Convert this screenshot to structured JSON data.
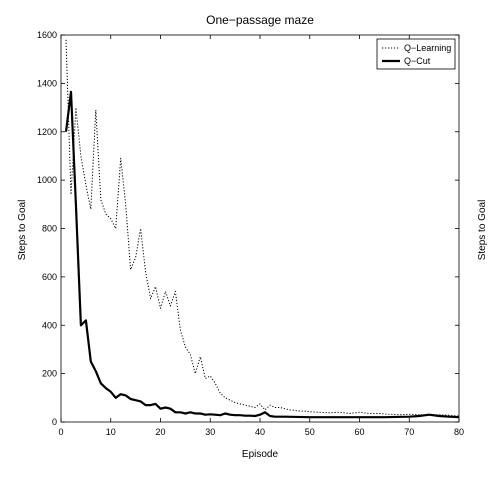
{
  "chart_data": {
    "type": "line",
    "title": "One−passage maze",
    "xlabel": "Episode",
    "ylabel": "Steps to Goal",
    "ylabel_right": "Steps to Goal",
    "xlim": [
      0,
      80
    ],
    "ylim": [
      0,
      1600
    ],
    "xticks": [
      0,
      10,
      20,
      30,
      40,
      50,
      60,
      70,
      80
    ],
    "yticks": [
      0,
      200,
      400,
      600,
      800,
      1000,
      1200,
      1400,
      1600
    ],
    "grid": false,
    "legend_position": "top-right",
    "series": [
      {
        "name": "Q−Learning",
        "style": "dotted",
        "color": "#000000",
        "x": [
          1,
          2,
          3,
          4,
          5,
          6,
          7,
          8,
          9,
          10,
          11,
          12,
          13,
          14,
          15,
          16,
          17,
          18,
          19,
          20,
          21,
          22,
          23,
          24,
          25,
          26,
          27,
          28,
          29,
          30,
          31,
          32,
          33,
          34,
          35,
          36,
          37,
          38,
          39,
          40,
          41,
          42,
          43,
          44,
          45,
          46,
          47,
          48,
          49,
          50,
          52,
          54,
          56,
          58,
          60,
          62,
          64,
          66,
          68,
          70,
          72,
          74,
          76,
          78,
          80
        ],
        "y": [
          1580,
          940,
          1300,
          1100,
          980,
          880,
          1290,
          920,
          860,
          840,
          800,
          1090,
          900,
          630,
          680,
          800,
          620,
          510,
          560,
          470,
          540,
          480,
          540,
          380,
          310,
          280,
          200,
          270,
          180,
          190,
          160,
          120,
          100,
          90,
          80,
          75,
          70,
          65,
          60,
          75,
          50,
          70,
          60,
          60,
          55,
          50,
          48,
          45,
          45,
          42,
          40,
          38,
          40,
          35,
          40,
          35,
          35,
          32,
          30,
          32,
          30,
          28,
          30,
          28,
          25
        ]
      },
      {
        "name": "Q−Cut",
        "style": "solid",
        "color": "#000000",
        "x": [
          1,
          2,
          3,
          4,
          5,
          6,
          7,
          8,
          9,
          10,
          11,
          12,
          13,
          14,
          15,
          16,
          17,
          18,
          19,
          20,
          21,
          22,
          23,
          24,
          25,
          26,
          27,
          28,
          29,
          30,
          31,
          32,
          33,
          34,
          35,
          36,
          37,
          38,
          39,
          40,
          41,
          42,
          43,
          44,
          45,
          50,
          55,
          60,
          65,
          70,
          72,
          74,
          76,
          78,
          80
        ],
        "y": [
          1200,
          1365,
          900,
          400,
          420,
          250,
          210,
          160,
          140,
          125,
          100,
          115,
          110,
          95,
          90,
          85,
          70,
          70,
          75,
          55,
          60,
          55,
          40,
          40,
          35,
          40,
          35,
          35,
          30,
          32,
          30,
          28,
          35,
          30,
          28,
          28,
          26,
          26,
          25,
          30,
          40,
          25,
          22,
          22,
          22,
          20,
          20,
          20,
          20,
          22,
          25,
          30,
          25,
          22,
          20
        ]
      }
    ]
  }
}
